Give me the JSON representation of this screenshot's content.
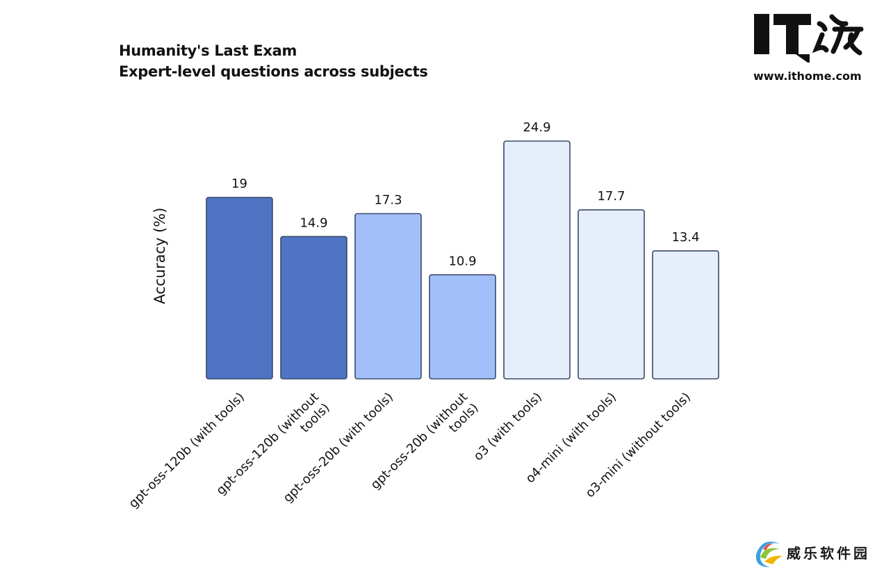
{
  "watermark_top": {
    "logo_text": "IT之家",
    "url": "www.ithome.com"
  },
  "watermark_bottom": {
    "text": "威乐软件园"
  },
  "chart_data": {
    "type": "bar",
    "title": "Humanity's Last Exam",
    "subtitle": "Expert-level questions across subjects",
    "ylabel": "Accuracy (%)",
    "xlabel": "",
    "ylim": [
      0,
      25
    ],
    "grid": false,
    "categories": [
      "gpt-oss-120b (with tools)",
      "gpt-oss-120b (without tools)",
      "gpt-oss-20b (with tools)",
      "gpt-oss-20b (without tools)",
      "o3 (with tools)",
      "o4-mini (with tools)",
      "o3-mini (without tools)"
    ],
    "tick_lines": [
      [
        "gpt-oss-120b (with tools)"
      ],
      [
        "gpt-oss-120b (without",
        "tools)"
      ],
      [
        "gpt-oss-20b (with tools)"
      ],
      [
        "gpt-oss-20b (without",
        "tools)"
      ],
      [
        "o3 (with tools)"
      ],
      [
        "o4-mini (with tools)"
      ],
      [
        "o3-mini (without tools)"
      ]
    ],
    "values": [
      19,
      14.9,
      17.3,
      10.9,
      24.9,
      17.7,
      13.4
    ],
    "value_labels": [
      "19",
      "14.9",
      "17.3",
      "10.9",
      "24.9",
      "17.7",
      "13.4"
    ],
    "colors": [
      "#5074c4",
      "#5074c4",
      "#a3bffa",
      "#a3bffa",
      "#e5eefa",
      "#e5eefa",
      "#e5eefa"
    ],
    "border_color": "#3a4a6b"
  }
}
